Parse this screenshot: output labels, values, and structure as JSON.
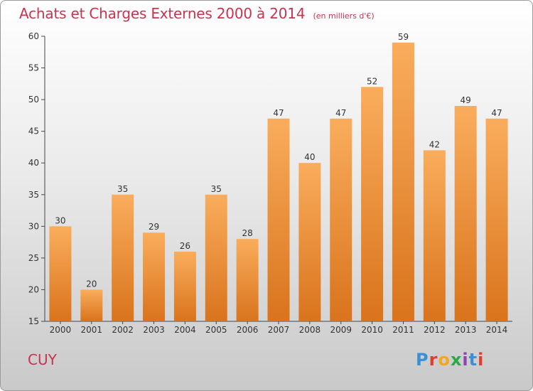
{
  "header": {
    "title": "Achats et Charges Externes 2000 à 2014",
    "unit": "(en milliers d'€)"
  },
  "commune": "CUY",
  "logo": {
    "letters": [
      "P",
      "r",
      "o",
      "x",
      "i",
      "t",
      "i"
    ],
    "colors": [
      "#3a8fd6",
      "#e03c31",
      "#f2a81d",
      "#2aa84a",
      "#8e44ad",
      "#3a8fd6",
      "#e03c31"
    ]
  },
  "colors": {
    "bar_light": "#f9ad5c",
    "bar_dark": "#d9731c",
    "text": "#c8334f",
    "axis": "#444444"
  },
  "chart_data": {
    "type": "bar",
    "title": "Achats et Charges Externes 2000 à 2014",
    "subtitle": "(en milliers d'€)",
    "categories": [
      "2000",
      "2001",
      "2002",
      "2003",
      "2004",
      "2005",
      "2006",
      "2007",
      "2008",
      "2009",
      "2010",
      "2011",
      "2012",
      "2013",
      "2014"
    ],
    "values": [
      30,
      20,
      35,
      29,
      26,
      35,
      28,
      47,
      40,
      47,
      52,
      59,
      42,
      49,
      47
    ],
    "ylim": [
      15,
      60
    ],
    "yticks": [
      15,
      20,
      25,
      30,
      35,
      40,
      45,
      50,
      55,
      60
    ],
    "grid": false,
    "data_labels": true
  }
}
